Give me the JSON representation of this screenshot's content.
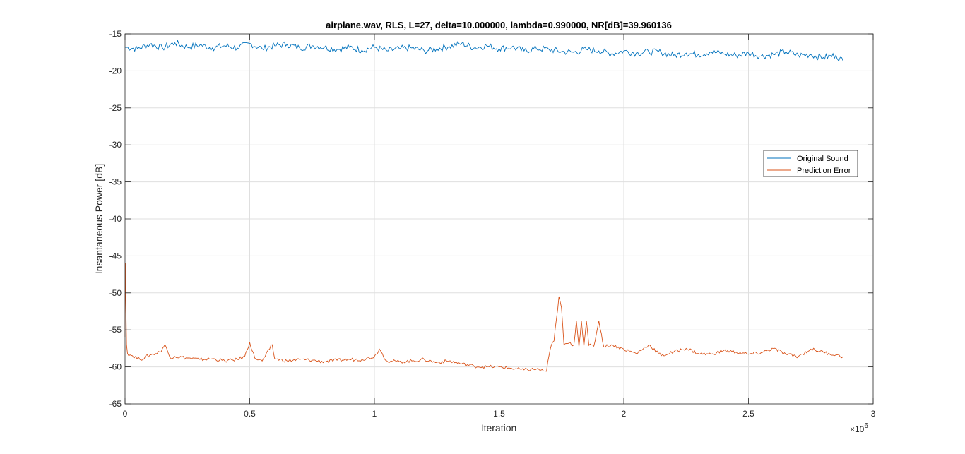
{
  "chart_data": {
    "type": "line",
    "title": "airplane.wav, RLS, L=27, delta=10.000000, lambda=0.990000, NR[dB]=39.960136",
    "xlabel": "Iteration",
    "ylabel": "Insantaneous Power [dB]",
    "x_exponent_label": "×10",
    "x_exponent_power": "6",
    "xlim": [
      0,
      3
    ],
    "ylim": [
      -65,
      -15
    ],
    "xticks": [
      0,
      0.5,
      1,
      1.5,
      2,
      2.5,
      3
    ],
    "xtick_labels": [
      "0",
      "0.5",
      "1",
      "1.5",
      "2",
      "2.5",
      "3"
    ],
    "yticks": [
      -65,
      -60,
      -55,
      -50,
      -45,
      -40,
      -35,
      -30,
      -25,
      -20,
      -15
    ],
    "ytick_labels": [
      "-65",
      "-60",
      "-55",
      "-50",
      "-45",
      "-40",
      "-35",
      "-30",
      "-25",
      "-20",
      "-15"
    ],
    "grid": true,
    "legend_position": "right",
    "series": [
      {
        "name": "Original Sound",
        "color": "#0072BD",
        "x": [
          0,
          0.05,
          0.1,
          0.15,
          0.2,
          0.25,
          0.3,
          0.35,
          0.4,
          0.45,
          0.5,
          0.55,
          0.6,
          0.65,
          0.7,
          0.75,
          0.8,
          0.85,
          0.9,
          0.95,
          1.0,
          1.05,
          1.1,
          1.15,
          1.2,
          1.25,
          1.3,
          1.35,
          1.4,
          1.45,
          1.5,
          1.55,
          1.6,
          1.65,
          1.7,
          1.75,
          1.8,
          1.85,
          1.9,
          1.95,
          2.0,
          2.05,
          2.1,
          2.15,
          2.2,
          2.25,
          2.3,
          2.35,
          2.4,
          2.45,
          2.5,
          2.55,
          2.6,
          2.65,
          2.7,
          2.75,
          2.8,
          2.85,
          2.88
        ],
        "y": [
          -16.8,
          -17.0,
          -16.4,
          -16.9,
          -16.2,
          -16.8,
          -16.5,
          -16.9,
          -16.6,
          -16.9,
          -16.3,
          -17.0,
          -16.6,
          -16.4,
          -16.9,
          -16.6,
          -16.8,
          -17.1,
          -16.8,
          -17.2,
          -16.8,
          -17.3,
          -17.0,
          -16.9,
          -17.3,
          -17.0,
          -16.7,
          -16.3,
          -16.9,
          -16.6,
          -17.0,
          -16.8,
          -17.3,
          -17.0,
          -17.1,
          -17.4,
          -17.5,
          -17.1,
          -17.3,
          -17.7,
          -17.3,
          -17.6,
          -17.4,
          -17.5,
          -17.9,
          -17.6,
          -17.8,
          -17.4,
          -17.7,
          -17.9,
          -17.6,
          -18.0,
          -17.8,
          -17.4,
          -17.9,
          -17.8,
          -18.2,
          -17.9,
          -18.7
        ]
      },
      {
        "name": "Prediction Error",
        "color": "#D95319",
        "x": [
          0,
          0.002,
          0.004,
          0.006,
          0.01,
          0.03,
          0.06,
          0.1,
          0.14,
          0.16,
          0.18,
          0.2,
          0.25,
          0.3,
          0.35,
          0.4,
          0.45,
          0.48,
          0.5,
          0.52,
          0.55,
          0.58,
          0.59,
          0.6,
          0.65,
          0.7,
          0.75,
          0.8,
          0.85,
          0.9,
          0.95,
          1.0,
          1.02,
          1.05,
          1.1,
          1.15,
          1.2,
          1.25,
          1.3,
          1.35,
          1.4,
          1.45,
          1.5,
          1.55,
          1.6,
          1.65,
          1.69,
          1.7,
          1.71,
          1.72,
          1.73,
          1.74,
          1.75,
          1.76,
          1.78,
          1.8,
          1.81,
          1.82,
          1.83,
          1.84,
          1.85,
          1.86,
          1.88,
          1.9,
          1.92,
          1.95,
          2.0,
          2.05,
          2.1,
          2.15,
          2.2,
          2.25,
          2.3,
          2.35,
          2.4,
          2.45,
          2.5,
          2.55,
          2.6,
          2.65,
          2.7,
          2.75,
          2.8,
          2.85,
          2.88
        ],
        "y": [
          -56.0,
          -46.0,
          -52.5,
          -57.0,
          -58.2,
          -58.5,
          -59.0,
          -58.4,
          -58.0,
          -57.0,
          -58.7,
          -58.6,
          -58.8,
          -59.0,
          -58.9,
          -59.2,
          -59.0,
          -58.6,
          -56.7,
          -58.8,
          -59.2,
          -57.6,
          -57.0,
          -58.9,
          -59.2,
          -59.0,
          -59.1,
          -59.3,
          -59.1,
          -59.0,
          -59.0,
          -58.6,
          -57.6,
          -59.2,
          -59.3,
          -59.2,
          -59.0,
          -59.4,
          -59.2,
          -59.6,
          -59.9,
          -60.0,
          -60.0,
          -60.2,
          -60.4,
          -60.3,
          -60.6,
          -58.5,
          -57.0,
          -56.5,
          -53.5,
          -50.5,
          -52.0,
          -57.0,
          -56.8,
          -57.0,
          -53.8,
          -57.3,
          -53.8,
          -57.2,
          -53.8,
          -57.1,
          -57.2,
          -53.8,
          -57.3,
          -57.0,
          -57.6,
          -58.2,
          -57.0,
          -58.5,
          -58.0,
          -57.5,
          -58.2,
          -58.3,
          -57.8,
          -58.0,
          -58.3,
          -58.1,
          -57.5,
          -58.3,
          -58.6,
          -57.6,
          -58.0,
          -58.4,
          -58.6
        ]
      }
    ]
  }
}
